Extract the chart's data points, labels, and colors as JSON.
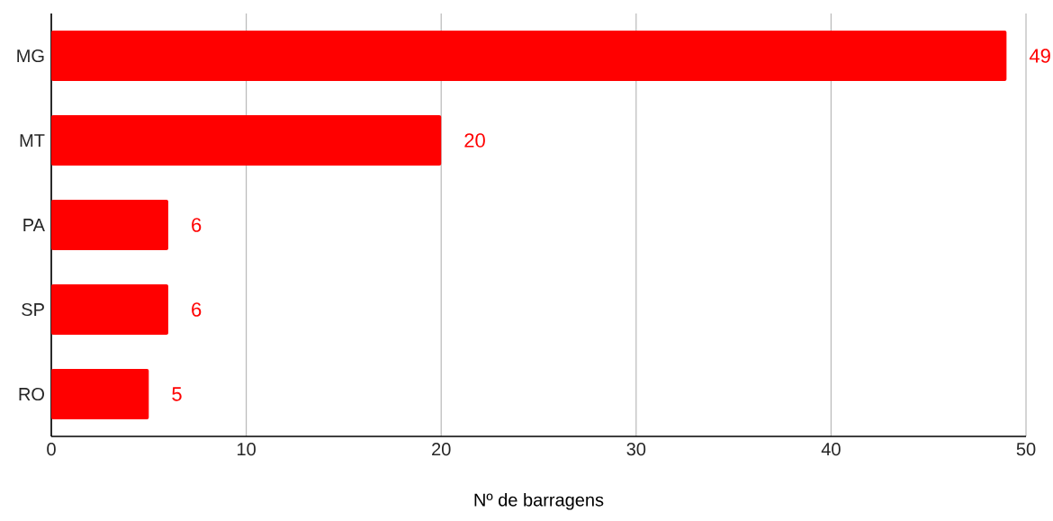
{
  "chart_data": {
    "type": "bar",
    "orientation": "horizontal",
    "xlabel": "Nº de barragens",
    "categories": [
      "MG",
      "MT",
      "PA",
      "SP",
      "RO"
    ],
    "values": [
      49,
      20,
      6,
      6,
      5
    ],
    "color": "#ff0000",
    "xlim": [
      0,
      50
    ],
    "xticks": [
      0,
      10,
      20,
      30,
      40,
      50
    ],
    "grid": "x",
    "data_labels": true
  }
}
